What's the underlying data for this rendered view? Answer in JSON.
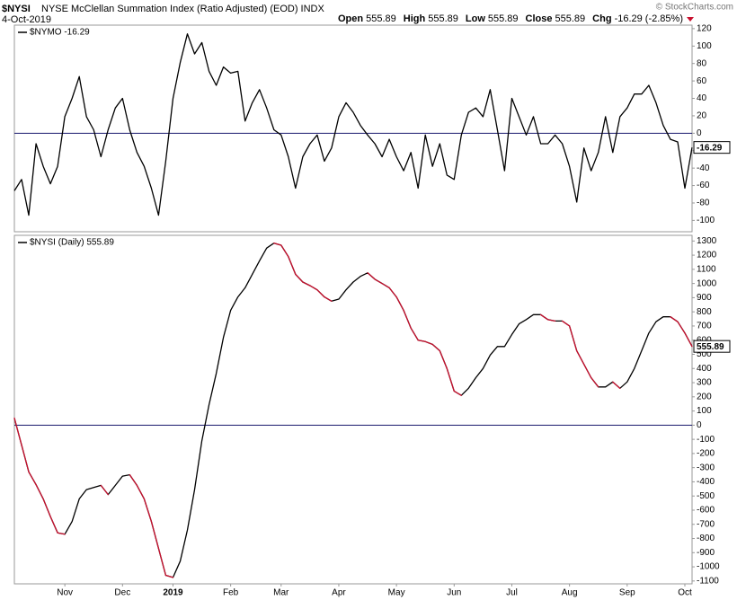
{
  "header": {
    "title": "$NYSI",
    "subtitle": "NYSE McClellan Summation Index (Ratio Adjusted) (EOD) INDX",
    "date": "4-Oct-2019",
    "quote": [
      {
        "label": "Open",
        "value": "555.89"
      },
      {
        "label": "High",
        "value": "555.89"
      },
      {
        "label": "Low",
        "value": "555.89"
      },
      {
        "label": "Close",
        "value": "555.89"
      },
      {
        "label": "Chg",
        "value": "-16.29 (-2.85%)"
      }
    ],
    "copyright": "© StockCharts.com"
  },
  "chart_data": [
    {
      "type": "line",
      "xlim": [
        0,
        94
      ],
      "ylim": [
        -113,
        124
      ],
      "yticks": [
        120,
        100,
        80,
        60,
        40,
        20,
        0,
        -20,
        -40,
        -60,
        -80,
        -100
      ],
      "hline": 0,
      "hline_color": "#1a1a6e",
      "xticks": [],
      "last_label": "-16.29",
      "series": [
        {
          "name": "$NYMO -16.29",
          "color": "#000000",
          "values": [
            -66,
            -53,
            -94,
            -12,
            -38,
            -58,
            -38,
            19,
            40,
            65,
            19,
            4,
            -27,
            4,
            29,
            40,
            4,
            -22,
            -38,
            -63,
            -94,
            -32,
            40,
            81,
            114,
            91,
            104,
            71,
            55,
            76,
            69,
            71,
            14,
            35,
            50,
            29,
            4,
            -2,
            -27,
            -63,
            -27,
            -12,
            -2,
            -32,
            -17,
            19,
            35,
            24,
            9,
            -2,
            -12,
            -27,
            -7,
            -27,
            -43,
            -22,
            -63,
            -2,
            -38,
            -12,
            -48,
            -53,
            -2,
            24,
            29,
            19,
            50,
            4,
            -43,
            40,
            19,
            -2,
            19,
            -12,
            -12,
            -2,
            -12,
            -38,
            -79,
            -17,
            -43,
            -22,
            19,
            -22,
            19,
            29,
            45,
            45,
            55,
            35,
            9,
            -7,
            -10,
            -63,
            -16.29
          ]
        }
      ]
    },
    {
      "type": "line",
      "xlim": [
        0,
        94
      ],
      "ylim": [
        -1120,
        1340
      ],
      "yticks": [
        1300,
        1200,
        1100,
        1000,
        900,
        800,
        700,
        600,
        500,
        400,
        300,
        200,
        100,
        0,
        -100,
        -200,
        -300,
        -400,
        -500,
        -600,
        -700,
        -800,
        -900,
        -1000,
        -1100
      ],
      "hline": 0,
      "hline_color": "#1a1a6e",
      "xticks": [
        {
          "value": 7,
          "label": "Nov"
        },
        {
          "value": 15,
          "label": "Dec"
        },
        {
          "value": 22,
          "label": "2019",
          "bold": true
        },
        {
          "value": 30,
          "label": "Feb"
        },
        {
          "value": 37,
          "label": "Mar"
        },
        {
          "value": 45,
          "label": "Apr"
        },
        {
          "value": 53,
          "label": "May"
        },
        {
          "value": 61,
          "label": "Jun"
        },
        {
          "value": 69,
          "label": "Jul"
        },
        {
          "value": 77,
          "label": "Aug"
        },
        {
          "value": 85,
          "label": "Sep"
        },
        {
          "value": 93,
          "label": "Oct"
        }
      ],
      "last_label": "555.89",
      "series": [
        {
          "name": "$NYSI (Daily) 555.89",
          "color": "#000000",
          "down_color": "#c8102e",
          "values": [
            50,
            -140,
            -330,
            -420,
            -520,
            -645,
            -760,
            -770,
            -680,
            -520,
            -455,
            -440,
            -425,
            -490,
            -425,
            -360,
            -350,
            -425,
            -520,
            -680,
            -870,
            -1060,
            -1075,
            -960,
            -740,
            -455,
            -110,
            145,
            365,
            620,
            810,
            905,
            970,
            1065,
            1160,
            1250,
            1285,
            1270,
            1190,
            1065,
            1010,
            985,
            955,
            905,
            875,
            890,
            955,
            1010,
            1050,
            1075,
            1030,
            1000,
            970,
            905,
            810,
            685,
            600,
            590,
            570,
            525,
            400,
            240,
            210,
            260,
            335,
            400,
            495,
            555,
            555,
            640,
            715,
            745,
            780,
            780,
            745,
            735,
            735,
            700,
            525,
            430,
            335,
            270,
            270,
            305,
            260,
            305,
            400,
            525,
            650,
            730,
            765,
            765,
            730,
            650,
            555.89
          ]
        }
      ]
    }
  ]
}
